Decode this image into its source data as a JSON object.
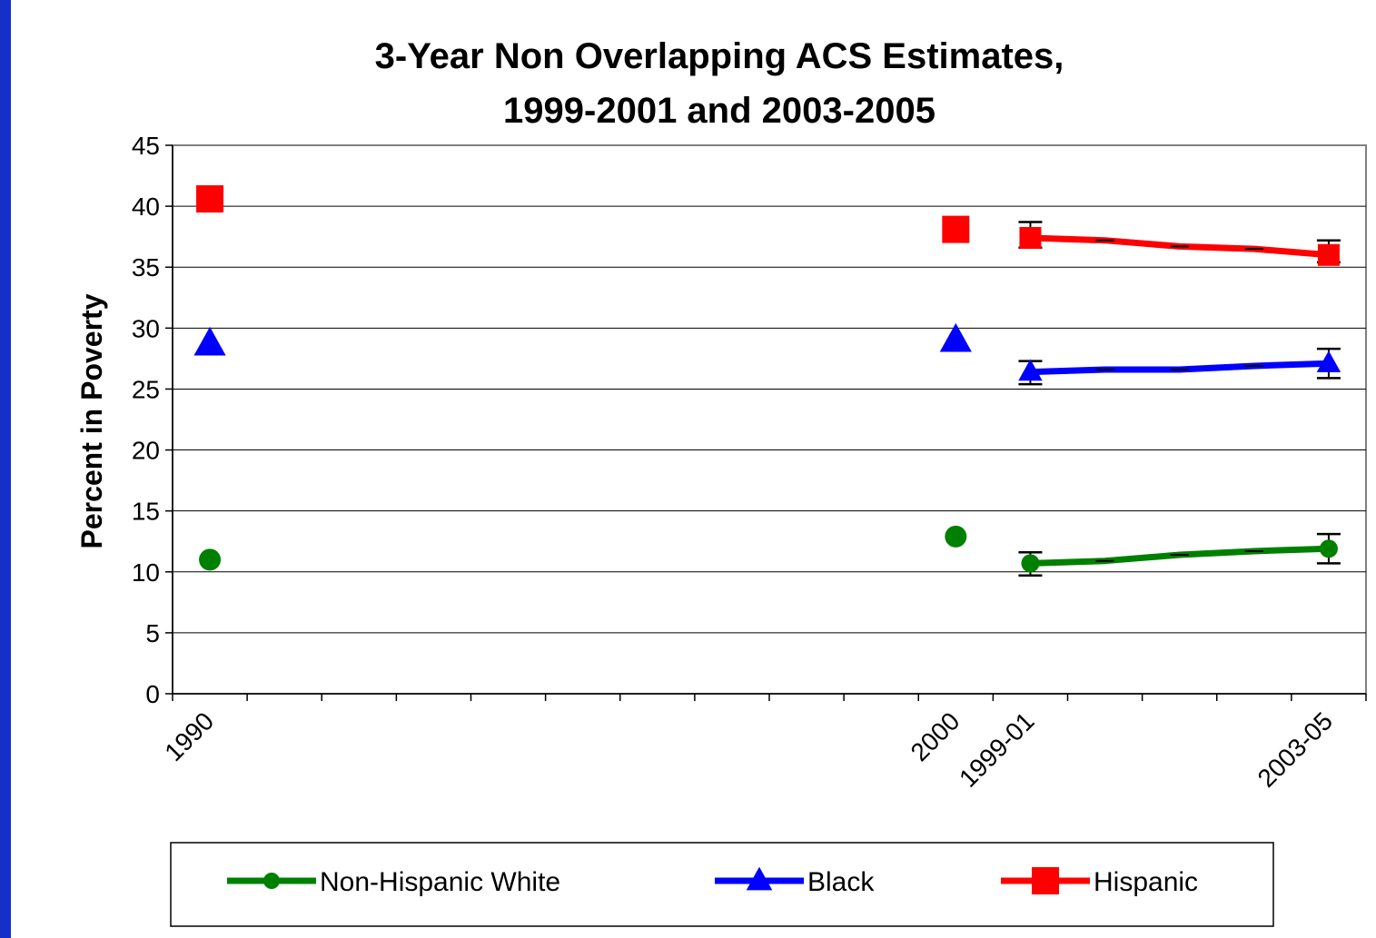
{
  "chart_data": {
    "type": "line",
    "title_lines": [
      "3-Year Non Overlapping ACS Estimates,",
      "1999-2001 and 2003-2005"
    ],
    "ylabel": "Percent in Poverty",
    "xlabel": "",
    "ylim": [
      0,
      45
    ],
    "yticks": [
      "0",
      "5",
      "10",
      "15",
      "20",
      "25",
      "30",
      "35",
      "40",
      "45"
    ],
    "x_tick_labels": [
      {
        "label": "1990",
        "slot": 0.5
      },
      {
        "label": "2000",
        "slot": 10.5
      },
      {
        "label": "1999-01",
        "slot": 11.5
      },
      {
        "label": "2003-05",
        "slot": 15.5
      }
    ],
    "x_categories": 16,
    "grid": true,
    "legend_position": "bottom",
    "colors": {
      "white": "#008000",
      "black": "#0000ff",
      "hispanic": "#ff0000",
      "background": "#1430c8"
    },
    "series": [
      {
        "name": "Non-Hispanic White",
        "key": "white",
        "marker": "circle",
        "points": [
          {
            "slot": 0.5,
            "y": 11.0
          },
          {
            "slot": 10.5,
            "y": 12.9
          }
        ],
        "line": [
          {
            "slot": 11.5,
            "y": 10.7
          },
          {
            "slot": 12.5,
            "y": 10.9
          },
          {
            "slot": 13.5,
            "y": 11.4
          },
          {
            "slot": 14.5,
            "y": 11.7
          },
          {
            "slot": 15.5,
            "y": 11.9
          }
        ],
        "error_bars": [
          {
            "slot": 11.5,
            "low": 9.7,
            "high": 11.6
          },
          {
            "slot": 15.5,
            "low": 10.7,
            "high": 13.1
          }
        ]
      },
      {
        "name": "Black",
        "key": "black",
        "marker": "triangle",
        "points": [
          {
            "slot": 0.5,
            "y": 28.7
          },
          {
            "slot": 10.5,
            "y": 29.0
          }
        ],
        "line": [
          {
            "slot": 11.5,
            "y": 26.4
          },
          {
            "slot": 12.5,
            "y": 26.6
          },
          {
            "slot": 13.5,
            "y": 26.6
          },
          {
            "slot": 14.5,
            "y": 26.9
          },
          {
            "slot": 15.5,
            "y": 27.1
          }
        ],
        "error_bars": [
          {
            "slot": 11.5,
            "low": 25.4,
            "high": 27.3
          },
          {
            "slot": 15.5,
            "low": 25.9,
            "high": 28.3
          }
        ]
      },
      {
        "name": "Hispanic",
        "key": "hispanic",
        "marker": "square",
        "points": [
          {
            "slot": 0.5,
            "y": 40.6
          },
          {
            "slot": 10.5,
            "y": 38.1
          }
        ],
        "line": [
          {
            "slot": 11.5,
            "y": 37.4
          },
          {
            "slot": 12.5,
            "y": 37.2
          },
          {
            "slot": 13.5,
            "y": 36.7
          },
          {
            "slot": 14.5,
            "y": 36.5
          },
          {
            "slot": 15.5,
            "y": 36.0
          }
        ],
        "error_bars": [
          {
            "slot": 11.5,
            "low": 36.6,
            "high": 38.7
          },
          {
            "slot": 15.5,
            "low": 35.4,
            "high": 37.2
          }
        ]
      }
    ]
  }
}
